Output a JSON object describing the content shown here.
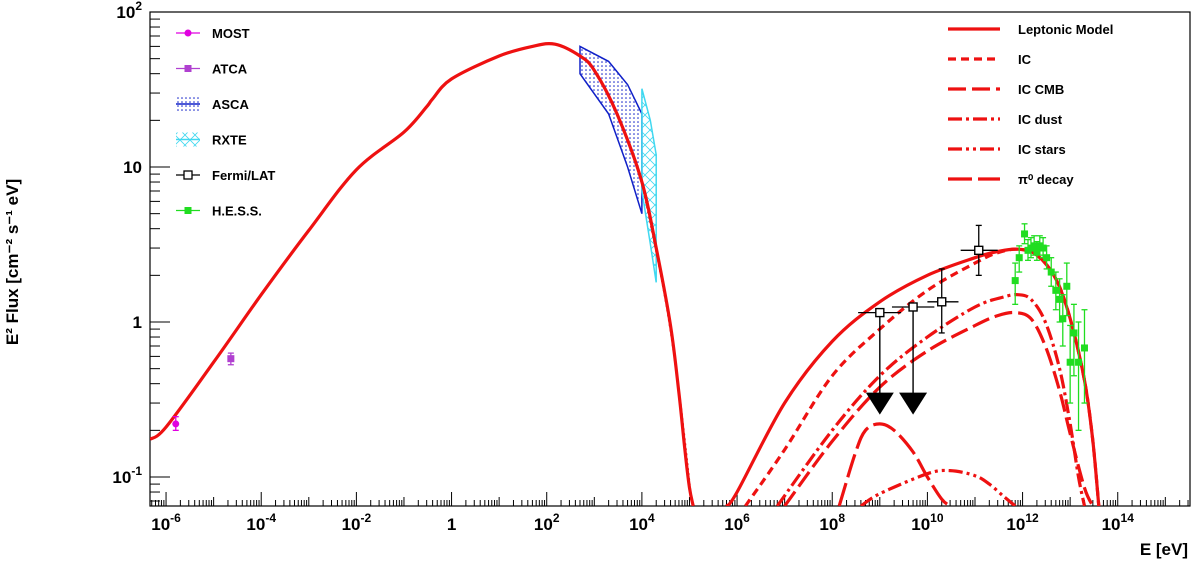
{
  "chart_data": {
    "type": "line",
    "xlabel": "E [eV]",
    "ylabel": "E² Flux [cm⁻² s⁻¹ eV]",
    "x_scale": "log",
    "y_scale": "log",
    "xlim": [
      4.6e-07,
      3300000000000000.0
    ],
    "ylim": [
      0.065,
      100
    ],
    "x_ticks": [
      {
        "value": 1e-06,
        "label_base": "10",
        "label_exp": "-6"
      },
      {
        "value": 0.0001,
        "label_base": "10",
        "label_exp": "-4"
      },
      {
        "value": 0.01,
        "label_base": "10",
        "label_exp": "-2"
      },
      {
        "value": 1,
        "label_base": "1",
        "label_exp": ""
      },
      {
        "value": 100.0,
        "label_base": "10",
        "label_exp": "2"
      },
      {
        "value": 10000.0,
        "label_base": "10",
        "label_exp": "4"
      },
      {
        "value": 1000000.0,
        "label_base": "10",
        "label_exp": "6"
      },
      {
        "value": 100000000.0,
        "label_base": "10",
        "label_exp": "8"
      },
      {
        "value": 10000000000.0,
        "label_base": "10",
        "label_exp": "10"
      },
      {
        "value": 1000000000000.0,
        "label_base": "10",
        "label_exp": "12"
      },
      {
        "value": 100000000000000.0,
        "label_base": "10",
        "label_exp": "14"
      }
    ],
    "y_ticks": [
      {
        "value": 0.1,
        "label_base": "10",
        "label_exp": "-1"
      },
      {
        "value": 1,
        "label_base": "1",
        "label_exp": ""
      },
      {
        "value": 10,
        "label_base": "10",
        "label_exp": ""
      },
      {
        "value": 100,
        "label_base": "10",
        "label_exp": "2"
      }
    ],
    "legend_left": [
      {
        "label": "MOST",
        "color": "#e000e0",
        "marker": "circle"
      },
      {
        "label": "ATCA",
        "color": "#b040d0",
        "marker": "square"
      },
      {
        "label": "ASCA",
        "color": "#1020c8",
        "marker": "band-dots"
      },
      {
        "label": "RXTE",
        "color": "#40d8f0",
        "marker": "band-cross"
      },
      {
        "label": "Fermi/LAT",
        "color": "#000000",
        "marker": "open-square"
      },
      {
        "label": "H.E.S.S.",
        "color": "#20dd20",
        "marker": "square"
      }
    ],
    "legend_right": [
      {
        "label": "Leptonic Model",
        "dash": ""
      },
      {
        "label": "IC",
        "dash": "8,5"
      },
      {
        "label": "IC CMB",
        "dash": "18,6"
      },
      {
        "label": "IC dust",
        "dash": "14,4,3,4"
      },
      {
        "label": "IC stars",
        "dash": "14,4,3,4,3,4"
      },
      {
        "label": "π⁰ decay",
        "dash": "24,6"
      }
    ],
    "model_color": "#ee1111",
    "series": [
      {
        "name": "Leptonic Model",
        "dash": "",
        "x": [
          4.6e-07,
          1e-06,
          1e-05,
          0.0001,
          0.001,
          0.01,
          0.1,
          0.3,
          0.4,
          1,
          10,
          50,
          150,
          500,
          1000.0,
          3000.0,
          10000.0,
          20000.0,
          40000.0,
          60000.0,
          80000.0,
          100000.0,
          120000.0
        ],
        "y": [
          0.175,
          0.21,
          0.55,
          1.5,
          3.9,
          9.6,
          16.8,
          24.5,
          27.5,
          37,
          52,
          60,
          62,
          52,
          42,
          22,
          8,
          3.0,
          0.95,
          0.35,
          0.15,
          0.085,
          0.065
        ]
      },
      {
        "name": "Leptonic Model",
        "dash": "",
        "x": [
          600000.0,
          1000000.0,
          10000000.0,
          100000000.0,
          1000000000.0,
          10000000000.0,
          100000000000.0,
          300000000000.0,
          800000000000.0,
          2000000000000.0,
          5000000000000.0,
          10000000000000.0,
          20000000000000.0,
          30000000000000.0,
          40000000000000.0
        ],
        "y": [
          0.065,
          0.08,
          0.3,
          0.75,
          1.35,
          2.0,
          2.6,
          2.85,
          2.95,
          2.7,
          1.9,
          1.05,
          0.42,
          0.17,
          0.065
        ]
      },
      {
        "name": "IC",
        "dash": "8,5",
        "x": [
          1500000.0,
          10000000.0,
          100000000.0,
          1000000000.0,
          10000000000.0,
          100000000000.0,
          300000000000.0,
          800000000000.0,
          2000000000000.0,
          5000000000000.0,
          10000000000000.0,
          20000000000000.0,
          30000000000000.0,
          40000000000000.0
        ],
        "y": [
          0.065,
          0.15,
          0.45,
          0.9,
          1.6,
          2.4,
          2.8,
          2.95,
          2.7,
          1.9,
          1.05,
          0.42,
          0.17,
          0.065
        ]
      },
      {
        "name": "IC CMB",
        "dash": "18,6",
        "x": [
          10000000.0,
          100000000.0,
          1000000000.0,
          10000000000.0,
          100000000000.0,
          300000000000.0,
          700000000000.0,
          1500000000000.0,
          3000000000000.0,
          6000000000000.0,
          10000000000000.0,
          20000000000000.0,
          30000000000000.0
        ],
        "y": [
          0.065,
          0.17,
          0.38,
          0.65,
          0.95,
          1.1,
          1.15,
          1.05,
          0.7,
          0.36,
          0.19,
          0.085,
          0.065
        ]
      },
      {
        "name": "IC dust",
        "dash": "14,4,3,4",
        "x": [
          7000000.0,
          100000000.0,
          1000000000.0,
          10000000000.0,
          100000000000.0,
          400000000000.0,
          800000000000.0,
          1500000000000.0,
          3000000000000.0,
          6000000000000.0,
          10000000000000.0,
          15000000000000.0,
          20000000000000.0
        ],
        "y": [
          0.065,
          0.2,
          0.45,
          0.8,
          1.25,
          1.45,
          1.5,
          1.4,
          1.0,
          0.5,
          0.22,
          0.1,
          0.065
        ]
      },
      {
        "name": "IC stars",
        "dash": "14,4,3,4,3,4",
        "x": [
          400000000.0,
          1000000000.0,
          10000000000.0,
          30000000000.0,
          100000000000.0,
          200000000000.0,
          400000000000.0,
          700000000000.0
        ],
        "y": [
          0.065,
          0.078,
          0.105,
          0.11,
          0.102,
          0.09,
          0.075,
          0.065
        ]
      },
      {
        "name": "π⁰ decay",
        "dash": "24,6",
        "x": [
          140000000.0,
          300000000.0,
          500000000.0,
          1000000000.0,
          2000000000.0,
          5000000000.0,
          10000000000.0,
          20000000000.0,
          30000000000.0
        ],
        "y": [
          0.065,
          0.14,
          0.2,
          0.22,
          0.2,
          0.145,
          0.1,
          0.072,
          0.065
        ]
      }
    ],
    "bands": [
      {
        "name": "ASCA",
        "color": "#1020c8",
        "fill": "dots",
        "x": [
          500,
          2000,
          5000,
          10000
        ],
        "upper": [
          60,
          48,
          34,
          22
        ],
        "lower": [
          40,
          22,
          10,
          5
        ]
      },
      {
        "name": "RXTE",
        "color": "#40d8f0",
        "fill": "cross",
        "x": [
          10000,
          15000,
          20000
        ],
        "upper": [
          32,
          20,
          12
        ],
        "lower": [
          7,
          3.2,
          1.8
        ]
      }
    ],
    "points": [
      {
        "name": "MOST",
        "color": "#e000e0",
        "marker": "circle",
        "x": [
          1.6e-06
        ],
        "y": [
          0.22
        ],
        "yerr_low": [
          0.2
        ],
        "yerr_high": [
          0.245
        ]
      },
      {
        "name": "ATCA",
        "color": "#b040d0",
        "marker": "square",
        "x": [
          2.3e-05
        ],
        "y": [
          0.58
        ],
        "yerr_low": [
          0.53
        ],
        "yerr_high": [
          0.63
        ]
      },
      {
        "name": "Fermi/LAT",
        "color": "#000000",
        "marker": "open-square",
        "x": [
          1000000000.0,
          5000000000.0,
          20000000000.0,
          120000000000.0
        ],
        "y": [
          1.15,
          1.25,
          1.35,
          2.9
        ],
        "xerr_low": [
          350000000.0,
          1800000000.0,
          10000000000.0,
          50000000000.0
        ],
        "xerr_high": [
          2800000000.0,
          14000000000.0,
          45000000000.0,
          300000000000.0
        ],
        "yerr_low": [
          null,
          null,
          0.85,
          2.0
        ],
        "yerr_high": [
          null,
          null,
          2.2,
          4.2
        ]
      },
      {
        "name": "H.E.S.S.",
        "color": "#20dd20",
        "marker": "square",
        "x": [
          700000000000.0,
          850000000000.0,
          1100000000000.0,
          1300000000000.0,
          1500000000000.0,
          1750000000000.0,
          2000000000000.0,
          2300000000000.0,
          2700000000000.0,
          3200000000000.0,
          4000000000000.0,
          5000000000000.0,
          6000000000000.0,
          7000000000000.0,
          8500000000000.0,
          10000000000000.0,
          12000000000000.0,
          15000000000000.0,
          20000000000000.0
        ],
        "y": [
          1.85,
          2.6,
          3.7,
          2.9,
          3.0,
          3.1,
          2.85,
          3.1,
          3.0,
          2.6,
          2.1,
          1.6,
          1.4,
          1.05,
          1.7,
          0.55,
          0.85,
          0.55,
          0.68
        ],
        "yerr_low": [
          1.3,
          2.1,
          3.2,
          2.5,
          2.6,
          2.7,
          2.5,
          2.7,
          2.6,
          2.2,
          1.7,
          1.2,
          1.0,
          0.7,
          1.1,
          0.3,
          0.45,
          0.2,
          0.3
        ],
        "yerr_high": [
          2.4,
          3.1,
          4.3,
          3.4,
          3.5,
          3.6,
          3.3,
          3.6,
          3.5,
          3.1,
          2.6,
          2.1,
          1.9,
          1.5,
          2.4,
          0.95,
          1.3,
          1.0,
          1.2
        ]
      }
    ],
    "upper_limits": [
      {
        "name": "Fermi/LAT",
        "x": [
          1000000000.0,
          5000000000.0
        ],
        "from_y": [
          1.15,
          1.25
        ],
        "arrow_y": [
          0.35,
          0.35
        ]
      }
    ]
  }
}
